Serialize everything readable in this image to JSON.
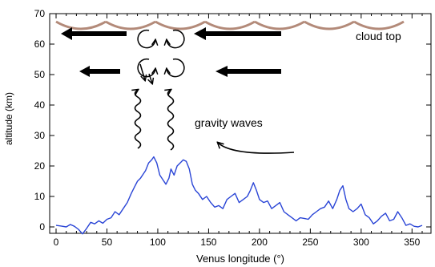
{
  "chart_data": {
    "type": "line",
    "xlabel": "Venus longitude (°)",
    "ylabel": "altitude (km)",
    "xlim": [
      0,
      360
    ],
    "ylim": [
      -3,
      70
    ],
    "xticks": [
      0,
      50,
      100,
      150,
      200,
      250,
      300,
      350
    ],
    "yticks": [
      0,
      10,
      20,
      30,
      40,
      50,
      60,
      70
    ],
    "series": [
      {
        "color": "#2a45d6",
        "x": [
          0,
          5,
          10,
          14,
          18,
          22,
          26,
          30,
          34,
          38,
          42,
          46,
          50,
          54,
          58,
          62,
          66,
          70,
          74,
          77,
          80,
          83,
          86,
          88,
          91,
          94,
          96,
          99,
          102,
          105,
          108,
          111,
          113,
          116,
          119,
          122,
          125,
          128,
          131,
          134,
          137,
          140,
          144,
          148,
          152,
          156,
          160,
          164,
          168,
          172,
          176,
          180,
          184,
          188,
          191,
          194,
          197,
          200,
          204,
          208,
          212,
          216,
          220,
          224,
          228,
          232,
          236,
          240,
          244,
          248,
          252,
          256,
          260,
          264,
          268,
          272,
          276,
          279,
          282,
          285,
          288,
          292,
          296,
          300,
          304,
          308,
          312,
          316,
          320,
          324,
          328,
          332,
          336,
          340,
          344,
          348,
          352,
          356,
          360
        ],
        "y": [
          0.5,
          0.3,
          0,
          0.8,
          0.2,
          -0.8,
          -2.3,
          -0.5,
          1.5,
          1,
          2,
          1.2,
          2.5,
          3,
          5,
          4,
          6,
          8,
          11,
          13,
          15,
          16,
          17.5,
          18.5,
          21,
          22,
          23,
          21,
          17,
          15.5,
          14,
          16,
          19,
          17,
          20,
          21,
          22,
          21.5,
          19,
          14,
          12,
          11,
          9,
          10,
          8,
          6.5,
          7,
          6,
          9,
          10,
          11,
          8,
          9,
          10,
          12,
          14.5,
          12,
          9,
          8,
          8.5,
          6,
          7,
          8,
          5,
          4,
          3,
          2,
          3,
          2.8,
          2.5,
          4,
          5,
          6,
          6.5,
          8.5,
          6,
          9,
          12,
          13.5,
          9,
          6,
          5,
          6,
          7.5,
          4,
          3,
          1,
          2,
          3.5,
          4.5,
          2,
          2.5,
          5,
          3,
          0.5,
          1,
          0.2,
          0,
          0.5
        ]
      }
    ]
  },
  "annotations": {
    "cloud_top_label": "cloud top",
    "gravity_waves_label": "gravity waves"
  },
  "colors": {
    "cloud_line": "#b38a79",
    "arrows": "#000000",
    "data_line": "#2a45d6"
  }
}
